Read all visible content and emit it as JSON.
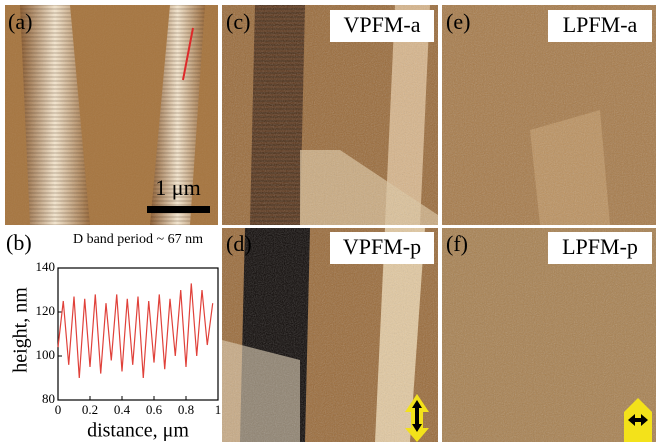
{
  "panels": {
    "a": {
      "label": "(a)",
      "scale_bar": "1 μm"
    },
    "c": {
      "label": "(c)",
      "title": "VPFM-a"
    },
    "e": {
      "label": "(e)",
      "title": "LPFM-a"
    },
    "d": {
      "label": "(d)",
      "title": "VPFM-p"
    },
    "f": {
      "label": "(f)",
      "title": "LPFM-p"
    },
    "b": {
      "label": "(b)"
    }
  },
  "chart_data": {
    "type": "line",
    "title": "D band period ~ 67 nm",
    "x_label": "distance, μm",
    "y_label": "height, nm",
    "x": [
      0,
      0.033,
      0.067,
      0.1,
      0.133,
      0.167,
      0.2,
      0.233,
      0.267,
      0.3,
      0.333,
      0.367,
      0.4,
      0.433,
      0.467,
      0.5,
      0.533,
      0.567,
      0.6,
      0.633,
      0.667,
      0.7,
      0.733,
      0.767,
      0.8,
      0.833,
      0.867,
      0.9,
      0.933,
      0.967
    ],
    "values": [
      104,
      125,
      96,
      127,
      90,
      126,
      95,
      128,
      92,
      124,
      98,
      128,
      93,
      126,
      96,
      127,
      90,
      125,
      97,
      128,
      94,
      126,
      100,
      130,
      95,
      133,
      100,
      130,
      105,
      124
    ],
    "color": "#e0413a",
    "xlim": [
      0,
      1
    ],
    "xticks": [
      0,
      0.2,
      0.4,
      0.6,
      0.8,
      1
    ],
    "ylim": [
      80,
      140
    ],
    "yticks": [
      80,
      100,
      120,
      140
    ]
  }
}
